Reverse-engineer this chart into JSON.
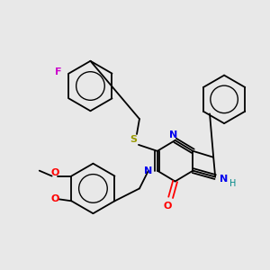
{
  "background_color": "#e8e8e8",
  "bond_color": "#000000",
  "atom_colors": {
    "F": "#cc00cc",
    "S": "#999900",
    "N": "#0000ee",
    "O": "#ff0000",
    "H": "#008888"
  }
}
